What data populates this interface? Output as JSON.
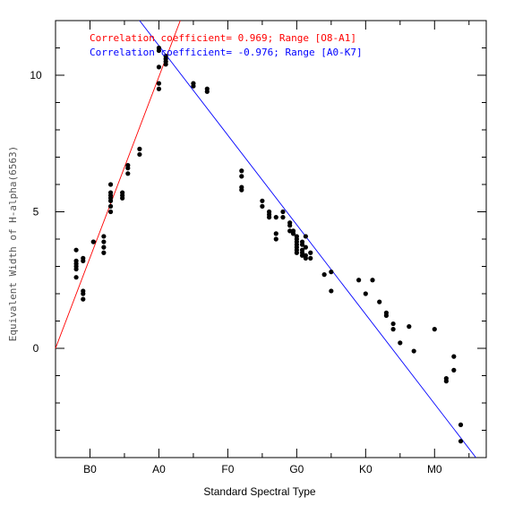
{
  "chart_data": {
    "type": "scatter",
    "xlabel": "Standard Spectral Type",
    "ylabel": "Equivalent Width of H-alpha(6563)",
    "xlim": [
      -0.5,
      5.75
    ],
    "ylim": [
      -4.0,
      12.0
    ],
    "x_ticks": [
      {
        "value": 0,
        "label": "B0"
      },
      {
        "value": 1,
        "label": "A0"
      },
      {
        "value": 2,
        "label": "F0"
      },
      {
        "value": 3,
        "label": "G0"
      },
      {
        "value": 4,
        "label": "K0"
      },
      {
        "value": 5,
        "label": "M0"
      }
    ],
    "y_ticks": [
      {
        "value": 0,
        "label": "0"
      },
      {
        "value": 5,
        "label": "5"
      },
      {
        "value": 10,
        "label": "10"
      }
    ],
    "grid": false,
    "points": [
      [
        -0.2,
        3.6
      ],
      [
        -0.2,
        3.2
      ],
      [
        -0.2,
        3.1
      ],
      [
        -0.2,
        3.0
      ],
      [
        -0.2,
        2.9
      ],
      [
        -0.2,
        2.6
      ],
      [
        -0.1,
        3.3
      ],
      [
        -0.1,
        3.2
      ],
      [
        -0.1,
        2.1
      ],
      [
        -0.1,
        2.0
      ],
      [
        -0.1,
        1.8
      ],
      [
        0.05,
        3.9
      ],
      [
        0.05,
        3.9
      ],
      [
        0.2,
        4.1
      ],
      [
        0.2,
        3.9
      ],
      [
        0.2,
        3.7
      ],
      [
        0.2,
        3.5
      ],
      [
        0.3,
        6.0
      ],
      [
        0.3,
        5.7
      ],
      [
        0.3,
        5.6
      ],
      [
        0.3,
        5.5
      ],
      [
        0.3,
        5.4
      ],
      [
        0.3,
        5.2
      ],
      [
        0.3,
        5.0
      ],
      [
        0.47,
        5.7
      ],
      [
        0.47,
        5.6
      ],
      [
        0.47,
        5.5
      ],
      [
        0.55,
        6.7
      ],
      [
        0.55,
        6.6
      ],
      [
        0.55,
        6.4
      ],
      [
        0.72,
        7.3
      ],
      [
        0.72,
        7.1
      ],
      [
        1.0,
        11.0
      ],
      [
        1.0,
        10.9
      ],
      [
        1.0,
        10.3
      ],
      [
        1.0,
        9.7
      ],
      [
        1.0,
        9.5
      ],
      [
        1.1,
        10.7
      ],
      [
        1.1,
        10.6
      ],
      [
        1.1,
        10.5
      ],
      [
        1.1,
        10.4
      ],
      [
        1.5,
        9.7
      ],
      [
        1.5,
        9.6
      ],
      [
        1.7,
        9.5
      ],
      [
        1.7,
        9.4
      ],
      [
        2.2,
        6.5
      ],
      [
        2.2,
        6.3
      ],
      [
        2.2,
        5.9
      ],
      [
        2.2,
        5.8
      ],
      [
        2.5,
        5.4
      ],
      [
        2.5,
        5.2
      ],
      [
        2.6,
        5.0
      ],
      [
        2.6,
        4.9
      ],
      [
        2.6,
        4.8
      ],
      [
        2.7,
        4.8
      ],
      [
        2.7,
        4.2
      ],
      [
        2.7,
        4.0
      ],
      [
        2.8,
        5.0
      ],
      [
        2.8,
        4.8
      ],
      [
        2.9,
        4.6
      ],
      [
        2.9,
        4.5
      ],
      [
        2.9,
        4.3
      ],
      [
        2.95,
        4.3
      ],
      [
        2.95,
        4.2
      ],
      [
        3.0,
        4.1
      ],
      [
        3.0,
        4.0
      ],
      [
        3.0,
        3.9
      ],
      [
        3.0,
        3.8
      ],
      [
        3.0,
        3.7
      ],
      [
        3.0,
        3.6
      ],
      [
        3.0,
        3.5
      ],
      [
        3.08,
        3.9
      ],
      [
        3.08,
        3.8
      ],
      [
        3.08,
        3.6
      ],
      [
        3.08,
        3.5
      ],
      [
        3.08,
        3.4
      ],
      [
        3.13,
        4.1
      ],
      [
        3.13,
        3.7
      ],
      [
        3.13,
        3.4
      ],
      [
        3.13,
        3.3
      ],
      [
        3.2,
        3.5
      ],
      [
        3.2,
        3.3
      ],
      [
        3.4,
        2.7
      ],
      [
        3.5,
        2.8
      ],
      [
        3.5,
        2.1
      ],
      [
        3.9,
        2.5
      ],
      [
        4.0,
        2.0
      ],
      [
        4.1,
        2.5
      ],
      [
        4.2,
        1.7
      ],
      [
        4.3,
        1.3
      ],
      [
        4.3,
        1.2
      ],
      [
        4.4,
        0.9
      ],
      [
        4.4,
        0.7
      ],
      [
        4.5,
        0.2
      ],
      [
        4.63,
        0.8
      ],
      [
        4.7,
        -0.1
      ],
      [
        5.0,
        0.7
      ],
      [
        5.17,
        -1.1
      ],
      [
        5.17,
        -1.2
      ],
      [
        5.28,
        -0.3
      ],
      [
        5.28,
        -0.8
      ],
      [
        5.38,
        -2.8
      ],
      [
        5.38,
        -3.4
      ]
    ],
    "fits": [
      {
        "label": "Correlation coefficient= 0.969; Range [O8-A1]",
        "color": "#ff0000",
        "x_from": -0.5,
        "x_to": 1.31,
        "y_at_from": 0.0,
        "y_at_to": 12.0
      },
      {
        "label": "Correlation coefficient= -0.976; Range [A0-K7]",
        "color": "#0000ff",
        "x_from": 0.72,
        "x_to": 5.6,
        "y_at_from": 12.0,
        "y_at_to": -4.0
      }
    ]
  }
}
